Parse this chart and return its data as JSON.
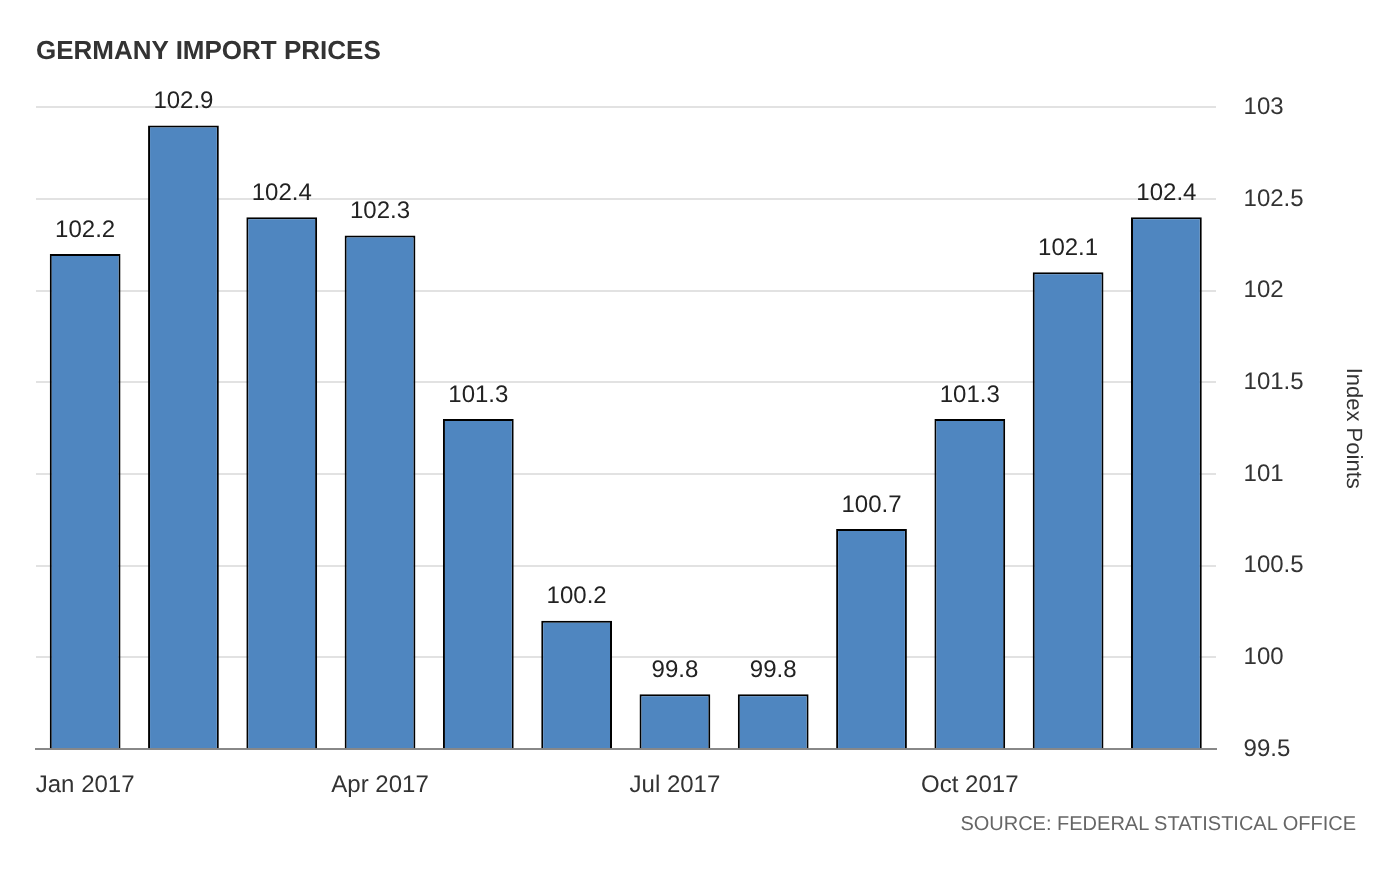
{
  "chart_data": {
    "type": "bar",
    "title": "GERMANY IMPORT PRICES",
    "ylabel": "Index Points",
    "categories": [
      "Jan 2017",
      null,
      null,
      "Apr 2017",
      null,
      null,
      "Jul 2017",
      null,
      null,
      "Oct 2017",
      null,
      null
    ],
    "values": [
      102.2,
      102.9,
      102.4,
      102.3,
      101.3,
      100.2,
      99.8,
      99.8,
      100.7,
      101.3,
      102.1,
      102.4
    ],
    "color": "#4f86c0",
    "ylim": [
      99.5,
      103
    ],
    "yticks": [
      99.5,
      100,
      100.5,
      101,
      101.5,
      102,
      102.5,
      103
    ],
    "grid": "y",
    "data_labels": true,
    "annotations": [
      "SOURCE: FEDERAL STATISTICAL OFFICE"
    ]
  }
}
